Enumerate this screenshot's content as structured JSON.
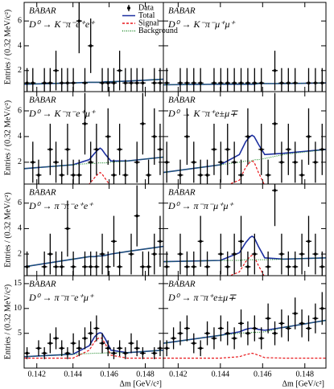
{
  "chart_data": [
    {
      "type": "line",
      "title": "BABAR",
      "label": "D⁰ → K⁻π⁻e⁺e⁺",
      "ylabel": "Entries / (0.32 MeV/c²)",
      "xlim": [
        0.1413,
        0.149
      ],
      "ylim": [
        0.3,
        7.5
      ],
      "yticks": [
        2,
        4,
        6
      ],
      "legend": [
        {
          "name": "Data",
          "color": "#000000",
          "style": "marker"
        },
        {
          "name": "Total",
          "color": "#1c2fa0",
          "style": "solid"
        },
        {
          "name": "Signal",
          "color": "#e8171b",
          "style": "dashed"
        },
        {
          "name": "Background",
          "color": "#1f8a2a",
          "style": "dotted"
        }
      ],
      "x": [
        0.14146,
        0.14178,
        0.1421,
        0.14242,
        0.14274,
        0.14306,
        0.14338,
        0.1437,
        0.14402,
        0.14434,
        0.14466,
        0.14498,
        0.1453,
        0.14562,
        0.14594,
        0.14626,
        0.14658,
        0.1469,
        0.14722,
        0.14754,
        0.14786,
        0.14818,
        0.1485,
        0.14882
      ],
      "values": [
        1,
        1,
        null,
        1,
        1,
        2,
        1,
        1,
        1,
        6,
        1,
        4,
        null,
        1,
        1,
        1,
        2,
        1,
        1,
        1,
        1,
        null,
        1,
        1
      ],
      "errors": [
        1.2,
        1.2,
        null,
        1.2,
        1.2,
        1.6,
        1.2,
        1.2,
        1.2,
        2.6,
        1.2,
        2.2,
        null,
        1.2,
        1.2,
        1.2,
        1.6,
        1.2,
        1.2,
        1.2,
        1.2,
        null,
        1.2,
        1.2
      ],
      "curve_x": [
        0.1413,
        0.144,
        0.1449,
        0.1452,
        0.1454,
        0.1455,
        0.1456,
        0.1458,
        0.1461,
        0.147,
        0.149
      ],
      "total": [
        0.9,
        1.0,
        1.05,
        1.05,
        1.05,
        1.05,
        1.05,
        1.1,
        1.1,
        1.15,
        1.3
      ],
      "background": [
        0.9,
        1.0,
        1.05,
        1.05,
        1.05,
        1.05,
        1.05,
        1.1,
        1.1,
        1.15,
        1.3
      ]
    },
    {
      "type": "line",
      "title": "BABAR",
      "label": "D⁰ → K⁻π⁻μ⁺μ⁺",
      "xlim": [
        0.1413,
        0.149
      ],
      "ylim": [
        0.3,
        7.5
      ],
      "x": [
        0.14146,
        0.14178,
        0.1421,
        0.14242,
        0.14274,
        0.14306,
        0.14338,
        0.1437,
        0.14402,
        0.14434,
        0.14466,
        0.14498,
        0.1453,
        0.14562,
        0.14594,
        0.14626,
        0.14658,
        0.1469,
        0.14722,
        0.14754,
        0.14786,
        0.14818,
        0.1485,
        0.14882
      ],
      "values": [
        1,
        null,
        1,
        1,
        1,
        1,
        null,
        1,
        1,
        1,
        1,
        1,
        1,
        1,
        1,
        null,
        2,
        1,
        1,
        1,
        null,
        1,
        1,
        1
      ],
      "errors": [
        1.2,
        null,
        1.2,
        1.2,
        1.2,
        1.2,
        null,
        1.2,
        1.2,
        1.2,
        1.2,
        1.2,
        1.2,
        1.2,
        1.2,
        null,
        1.6,
        1.2,
        1.2,
        1.2,
        null,
        1.2,
        1.2,
        1.2
      ],
      "curve_x": [
        0.1413,
        0.144,
        0.1449,
        0.1452,
        0.1454,
        0.1455,
        0.1456,
        0.1458,
        0.1461,
        0.147,
        0.149
      ],
      "total": [
        0.85,
        0.9,
        0.9,
        0.9,
        0.9,
        0.9,
        0.9,
        0.95,
        0.95,
        0.95,
        1.0
      ],
      "background": [
        0.85,
        0.9,
        0.9,
        0.9,
        0.9,
        0.9,
        0.9,
        0.95,
        0.95,
        0.95,
        1.0
      ]
    },
    {
      "type": "line",
      "title": "BABAR",
      "label": "D⁰ → K⁻π⁻e⁺μ⁺",
      "ylabel": "Entries / (0.32 MeV/c²)",
      "xlim": [
        0.1413,
        0.149
      ],
      "ylim": [
        0.3,
        7.5
      ],
      "yticks": [
        2,
        4,
        6
      ],
      "x": [
        0.14146,
        0.14178,
        0.1421,
        0.14242,
        0.14274,
        0.14306,
        0.14338,
        0.1437,
        0.14402,
        0.14434,
        0.14466,
        0.14498,
        0.1453,
        0.14562,
        0.14594,
        0.14626,
        0.14658,
        0.1469,
        0.14722,
        0.14754,
        0.14786,
        0.14818,
        0.1485,
        0.14882
      ],
      "values": [
        null,
        2,
        1,
        null,
        3,
        2,
        1,
        3,
        1,
        1,
        5,
        2,
        3,
        null,
        4,
        1,
        3,
        1,
        null,
        2,
        5,
        1,
        4,
        3
      ],
      "errors": [
        null,
        1.6,
        1.2,
        null,
        2.0,
        1.6,
        1.2,
        2.0,
        1.2,
        1.2,
        2.4,
        1.6,
        2.0,
        null,
        2.2,
        1.2,
        2.0,
        1.2,
        null,
        1.6,
        2.4,
        1.2,
        2.2,
        2.0
      ],
      "curve_x": [
        0.1413,
        0.144,
        0.1449,
        0.1452,
        0.1454,
        0.1455,
        0.1456,
        0.1458,
        0.1461,
        0.147,
        0.149
      ],
      "total": [
        1.5,
        1.8,
        2.2,
        2.7,
        3.0,
        3.1,
        3.0,
        2.6,
        2.1,
        2.1,
        2.4
      ],
      "signal": [
        0,
        0,
        0.3,
        0.8,
        1.1,
        1.2,
        1.1,
        0.7,
        0.1,
        0,
        0
      ],
      "background": [
        1.5,
        1.8,
        1.9,
        1.9,
        1.95,
        1.95,
        1.95,
        1.95,
        2.0,
        2.1,
        2.4
      ]
    },
    {
      "type": "line",
      "title": "BABAR",
      "label": "D⁰ → K⁻π⁺e±μ∓",
      "xlim": [
        0.1413,
        0.149
      ],
      "ylim": [
        0.3,
        7.5
      ],
      "x": [
        0.14146,
        0.14178,
        0.1421,
        0.14242,
        0.14274,
        0.14306,
        0.14338,
        0.1437,
        0.14402,
        0.14434,
        0.14466,
        0.14498,
        0.1453,
        0.14562,
        0.14594,
        0.14626,
        0.14658,
        0.1469,
        0.14722,
        0.14754,
        0.14786,
        0.14818,
        0.1485,
        0.14882
      ],
      "values": [
        2,
        null,
        1,
        4,
        2,
        1,
        1,
        3,
        2,
        3,
        2,
        1,
        4,
        null,
        3,
        1,
        5,
        2,
        3,
        2,
        1,
        4,
        2,
        3
      ],
      "errors": [
        1.6,
        null,
        1.2,
        2.2,
        1.6,
        1.2,
        1.2,
        2.0,
        1.6,
        2.0,
        1.6,
        1.2,
        2.2,
        null,
        2.0,
        1.2,
        2.4,
        1.6,
        2.0,
        1.6,
        1.2,
        2.2,
        1.6,
        2.0
      ],
      "curve_x": [
        0.1413,
        0.144,
        0.1449,
        0.1452,
        0.1454,
        0.1455,
        0.1456,
        0.1458,
        0.1461,
        0.147,
        0.149
      ],
      "total": [
        1.2,
        1.8,
        2.6,
        3.6,
        4.0,
        4.1,
        4.0,
        3.4,
        2.6,
        2.7,
        3.0
      ],
      "signal": [
        0,
        0,
        0.6,
        1.6,
        2.0,
        2.1,
        2.0,
        1.2,
        0.2,
        0,
        0
      ],
      "background": [
        1.2,
        1.8,
        2.0,
        2.1,
        2.1,
        2.1,
        2.2,
        2.2,
        2.3,
        2.6,
        3.0
      ]
    },
    {
      "type": "line",
      "title": "BABAR",
      "label": "D⁰ → π⁻π⁻e⁺e⁺",
      "ylabel": "Entries / (0.32 MeV/c²)",
      "xlim": [
        0.1413,
        0.149
      ],
      "ylim": [
        0.3,
        7.5
      ],
      "yticks": [
        2,
        4,
        6
      ],
      "x": [
        0.14146,
        0.14178,
        0.1421,
        0.14242,
        0.14274,
        0.14306,
        0.14338,
        0.1437,
        0.14402,
        0.14434,
        0.14466,
        0.14498,
        0.1453,
        0.14562,
        0.14594,
        0.14626,
        0.14658,
        0.1469,
        0.14722,
        0.14754,
        0.14786,
        0.14818,
        0.1485,
        0.14882
      ],
      "values": [
        1,
        null,
        null,
        1,
        2,
        1,
        1,
        4,
        1,
        null,
        1,
        1,
        1,
        2,
        1,
        3,
        1,
        null,
        2,
        5,
        1,
        1,
        2,
        3
      ],
      "errors": [
        1.2,
        null,
        null,
        1.2,
        1.6,
        1.2,
        1.2,
        2.2,
        1.2,
        null,
        1.2,
        1.2,
        1.2,
        1.6,
        1.2,
        2.0,
        1.2,
        null,
        1.6,
        2.4,
        1.2,
        1.2,
        1.6,
        2.0
      ],
      "curve_x": [
        0.1413,
        0.144,
        0.1449,
        0.1452,
        0.1454,
        0.1455,
        0.1456,
        0.1458,
        0.1461,
        0.147,
        0.149
      ],
      "total": [
        1.0,
        1.6,
        1.8,
        1.8,
        1.85,
        1.85,
        1.85,
        1.9,
        2.0,
        2.2,
        2.6
      ],
      "background": [
        1.0,
        1.6,
        1.8,
        1.8,
        1.85,
        1.85,
        1.85,
        1.9,
        2.0,
        2.2,
        2.6
      ]
    },
    {
      "type": "line",
      "title": "BABAR",
      "label": "D⁰ → π⁻π⁻μ⁺μ⁺",
      "xlim": [
        0.1413,
        0.149
      ],
      "ylim": [
        0.3,
        7.5
      ],
      "x": [
        0.14146,
        0.14178,
        0.1421,
        0.14242,
        0.14274,
        0.14306,
        0.14338,
        0.1437,
        0.14402,
        0.14434,
        0.14466,
        0.14498,
        0.1453,
        0.14562,
        0.14594,
        0.14626,
        0.14658,
        0.1469,
        0.14722,
        0.14754,
        0.14786,
        0.14818,
        0.1485,
        0.14882
      ],
      "values": [
        1,
        null,
        2,
        1,
        1,
        3,
        1,
        null,
        2,
        1,
        2,
        3,
        1,
        2,
        null,
        1,
        7,
        2,
        1,
        1,
        2,
        3,
        2,
        1
      ],
      "errors": [
        1.2,
        null,
        1.6,
        1.2,
        1.2,
        2.0,
        1.2,
        null,
        1.6,
        1.2,
        1.6,
        2.0,
        1.2,
        1.6,
        null,
        1.2,
        2.8,
        1.6,
        1.2,
        1.2,
        1.6,
        2.0,
        1.6,
        1.2
      ],
      "curve_x": [
        0.1413,
        0.144,
        0.1449,
        0.1452,
        0.1454,
        0.1455,
        0.1456,
        0.1458,
        0.1461,
        0.147,
        0.149
      ],
      "total": [
        1.4,
        1.5,
        2.1,
        2.9,
        3.3,
        3.4,
        3.3,
        2.6,
        1.7,
        1.6,
        1.7
      ],
      "signal": [
        0,
        0,
        0.6,
        1.4,
        1.8,
        1.9,
        1.8,
        1.1,
        0.2,
        0,
        0
      ],
      "background": [
        1.4,
        1.5,
        1.5,
        1.55,
        1.55,
        1.55,
        1.55,
        1.55,
        1.55,
        1.6,
        1.7
      ]
    },
    {
      "type": "line",
      "title": "BABAR",
      "label": "D⁰ → π⁻π⁻e⁺μ⁺",
      "ylabel": "Entries / (0.32 MeV/c²)",
      "xlabel": "Δm [GeV/c²]",
      "xlim": [
        0.1413,
        0.149
      ],
      "ylim": [
        -2,
        16.6
      ],
      "yticks": [
        5,
        10,
        15
      ],
      "xticks": [
        0.142,
        0.144,
        0.146,
        0.148
      ],
      "x": [
        0.14146,
        0.14178,
        0.1421,
        0.14242,
        0.14274,
        0.14306,
        0.14338,
        0.1437,
        0.14402,
        0.14434,
        0.14466,
        0.14498,
        0.1453,
        0.14562,
        0.14594,
        0.14626,
        0.14658,
        0.1469,
        0.14722,
        0.14754,
        0.14786,
        0.14818,
        0.1485,
        0.14882
      ],
      "values": [
        1,
        null,
        2,
        1,
        3,
        4,
        2,
        1,
        3,
        2,
        4,
        5,
        6,
        3,
        2,
        1,
        2,
        1,
        3,
        2,
        1,
        null,
        1,
        2
      ],
      "errors": [
        1.2,
        null,
        1.6,
        1.2,
        2.0,
        2.2,
        1.6,
        1.2,
        2.0,
        1.6,
        2.2,
        2.4,
        2.6,
        2.0,
        1.6,
        1.2,
        1.6,
        1.2,
        2.0,
        1.6,
        1.2,
        null,
        1.2,
        1.6
      ],
      "curve_x": [
        0.1413,
        0.144,
        0.1449,
        0.1452,
        0.1454,
        0.1455,
        0.1456,
        0.1458,
        0.1461,
        0.147,
        0.149
      ],
      "total": [
        0.3,
        0.8,
        2.5,
        4.3,
        5.0,
        5.1,
        5.0,
        3.8,
        1.6,
        1.1,
        1.6
      ],
      "signal": [
        0,
        0,
        1.6,
        3.3,
        4.0,
        4.1,
        4.0,
        2.8,
        0.6,
        0,
        0
      ],
      "background": [
        0.3,
        0.8,
        0.95,
        1.0,
        1.0,
        1.0,
        1.0,
        1.05,
        1.1,
        1.1,
        1.6
      ]
    },
    {
      "type": "line",
      "title": "BABAR",
      "label": "D⁰ → π⁻π⁺e±μ∓",
      "xlabel": "Δm [GeV/c²]",
      "xlim": [
        0.1413,
        0.149
      ],
      "ylim": [
        -2,
        16.6
      ],
      "xticks": [
        0.142,
        0.144,
        0.146,
        0.148
      ],
      "x": [
        0.14146,
        0.14178,
        0.1421,
        0.14242,
        0.14274,
        0.14306,
        0.14338,
        0.1437,
        0.14402,
        0.14434,
        0.14466,
        0.14498,
        0.1453,
        0.14562,
        0.14594,
        0.14626,
        0.14658,
        0.1469,
        0.14722,
        0.14754,
        0.14786,
        0.14818,
        0.1485,
        0.14882
      ],
      "values": [
        2,
        4,
        5,
        6,
        3,
        2,
        5,
        4,
        6,
        5,
        4,
        7,
        5,
        6,
        4,
        8,
        5,
        7,
        6,
        9,
        7,
        6,
        8,
        10
      ],
      "errors": [
        1.6,
        2.2,
        2.4,
        2.6,
        2.0,
        1.6,
        2.4,
        2.2,
        2.6,
        2.4,
        2.2,
        2.8,
        2.4,
        2.6,
        2.2,
        3.0,
        2.4,
        2.8,
        2.6,
        3.2,
        2.8,
        2.6,
        3.0,
        3.3
      ],
      "curve_x": [
        0.1413,
        0.144,
        0.1449,
        0.1452,
        0.1454,
        0.1455,
        0.1456,
        0.1458,
        0.1461,
        0.147,
        0.149
      ],
      "total": [
        3.0,
        4.6,
        5.3,
        5.8,
        6.0,
        6.0,
        6.0,
        5.8,
        5.6,
        6.2,
        7.6
      ],
      "signal": [
        0,
        0,
        0.3,
        0.7,
        0.9,
        1.0,
        0.9,
        0.6,
        0.1,
        0,
        0
      ],
      "background": [
        3.0,
        4.6,
        5.0,
        5.1,
        5.1,
        5.2,
        5.2,
        5.2,
        5.3,
        6.2,
        7.6
      ]
    }
  ]
}
